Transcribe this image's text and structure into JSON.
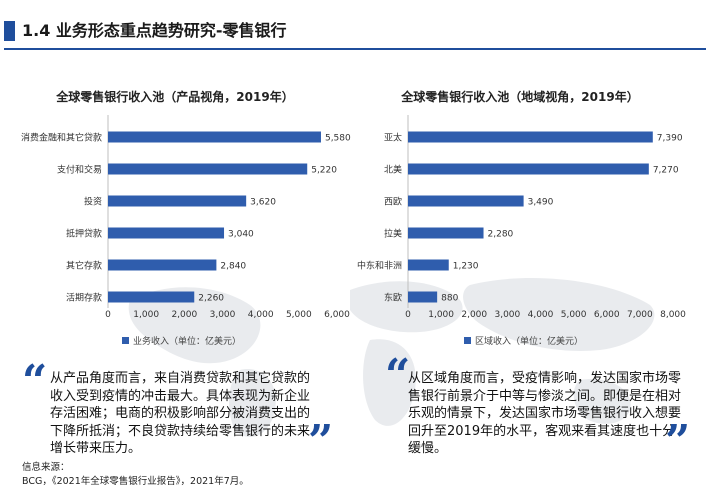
{
  "page": {
    "title": "1.4 业务形态重点趋势研究-零售银行",
    "accent_color": "#1f4e9c"
  },
  "chart_data": [
    {
      "type": "bar",
      "orientation": "horizontal",
      "title": "全球零售银行收入池（产品视角，2019年）",
      "categories": [
        "消费金融和其它贷款",
        "支付和交易",
        "投资",
        "抵押贷款",
        "其它存款",
        "活期存款"
      ],
      "series": [
        {
          "name": "业务收入（单位：亿美元）",
          "values": [
            5580,
            5220,
            3620,
            3040,
            2840,
            2260
          ]
        }
      ],
      "value_labels": [
        "5,580",
        "5,220",
        "3,620",
        "3,040",
        "2,840",
        "2,260"
      ],
      "xlim": [
        0,
        6000
      ],
      "xticks": [
        0,
        1000,
        2000,
        3000,
        4000,
        5000,
        6000
      ],
      "xtick_labels": [
        "0",
        "1,000",
        "2,000",
        "3,000",
        "4,000",
        "5,000",
        "6,000"
      ],
      "legend_position": "bottom",
      "grid": false,
      "bar_color": "#2f5dad"
    },
    {
      "type": "bar",
      "orientation": "horizontal",
      "title": "全球零售银行收入池（地域视角，2019年）",
      "categories": [
        "亚太",
        "北美",
        "西欧",
        "拉美",
        "中东和非洲",
        "东欧"
      ],
      "series": [
        {
          "name": "区域收入（单位：亿美元）",
          "values": [
            7390,
            7270,
            3490,
            2280,
            1230,
            880
          ]
        }
      ],
      "value_labels": [
        "7,390",
        "7,270",
        "3,490",
        "2,280",
        "1,230",
        "880"
      ],
      "xlim": [
        0,
        8000
      ],
      "xticks": [
        0,
        1000,
        2000,
        3000,
        4000,
        5000,
        6000,
        7000,
        8000
      ],
      "xtick_labels": [
        "0",
        "1,000",
        "2,000",
        "3,000",
        "4,000",
        "5,000",
        "6,000",
        "7,000",
        "8,000"
      ],
      "legend_position": "bottom",
      "grid": false,
      "bar_color": "#2f5dad"
    }
  ],
  "quotes": {
    "left": "从产品角度而言，来自消费贷款和其它贷款的收入受到疫情的冲击最大。具体表现为新企业存活困难；电商的积极影响部分被消费支出的下降所抵消；不良贷款持续给零售银行的未来增长带来压力。",
    "right": "从区域角度而言，受疫情影响，发达国家市场零售银行前景介于中等与惨淡之间。即便是在相对乐观的情景下，发达国家市场零售银行收入想要回升至2019年的水平，客观来看其速度也十分缓慢。"
  },
  "source": {
    "label": "信息来源：",
    "text": "BCG，《2021年全球零售银行业报告》，2021年7月。"
  }
}
